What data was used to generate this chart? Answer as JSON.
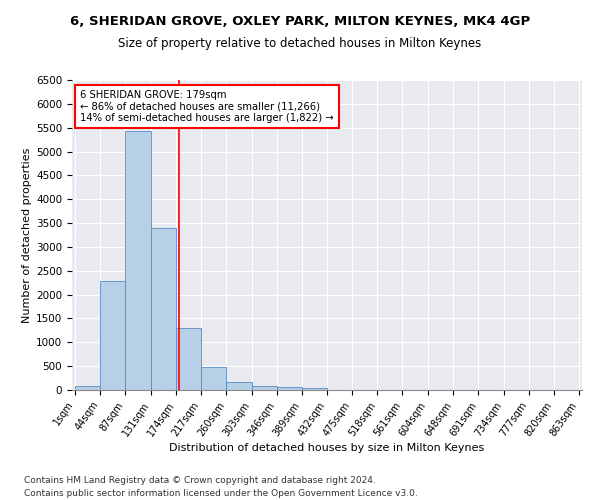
{
  "title_line1": "6, SHERIDAN GROVE, OXLEY PARK, MILTON KEYNES, MK4 4GP",
  "title_line2": "Size of property relative to detached houses in Milton Keynes",
  "xlabel": "Distribution of detached houses by size in Milton Keynes",
  "ylabel": "Number of detached properties",
  "bar_color": "#b8cfe8",
  "bar_edge_color": "#5b8cc4",
  "background_color": "#e8eaf0",
  "grid_color": "#ffffff",
  "property_size": 179,
  "annotation_title": "6 SHERIDAN GROVE: 179sqm",
  "annotation_line1": "← 86% of detached houses are smaller (11,266)",
  "annotation_line2": "14% of semi-detached houses are larger (1,822) →",
  "bin_edges": [
    1,
    44,
    87,
    131,
    174,
    217,
    260,
    303,
    346,
    389,
    432,
    475,
    518,
    561,
    604,
    648,
    691,
    734,
    777,
    820,
    863
  ],
  "bar_heights": [
    80,
    2280,
    5430,
    3400,
    1300,
    480,
    160,
    80,
    60,
    50,
    0,
    0,
    0,
    0,
    0,
    0,
    0,
    0,
    0,
    0
  ],
  "footnote_line1": "Contains HM Land Registry data © Crown copyright and database right 2024.",
  "footnote_line2": "Contains public sector information licensed under the Open Government Licence v3.0.",
  "ylim": [
    0,
    6500
  ],
  "title_fontsize": 9.5,
  "subtitle_fontsize": 8.5,
  "axis_label_fontsize": 8,
  "tick_fontsize": 7,
  "footnote_fontsize": 6.5
}
